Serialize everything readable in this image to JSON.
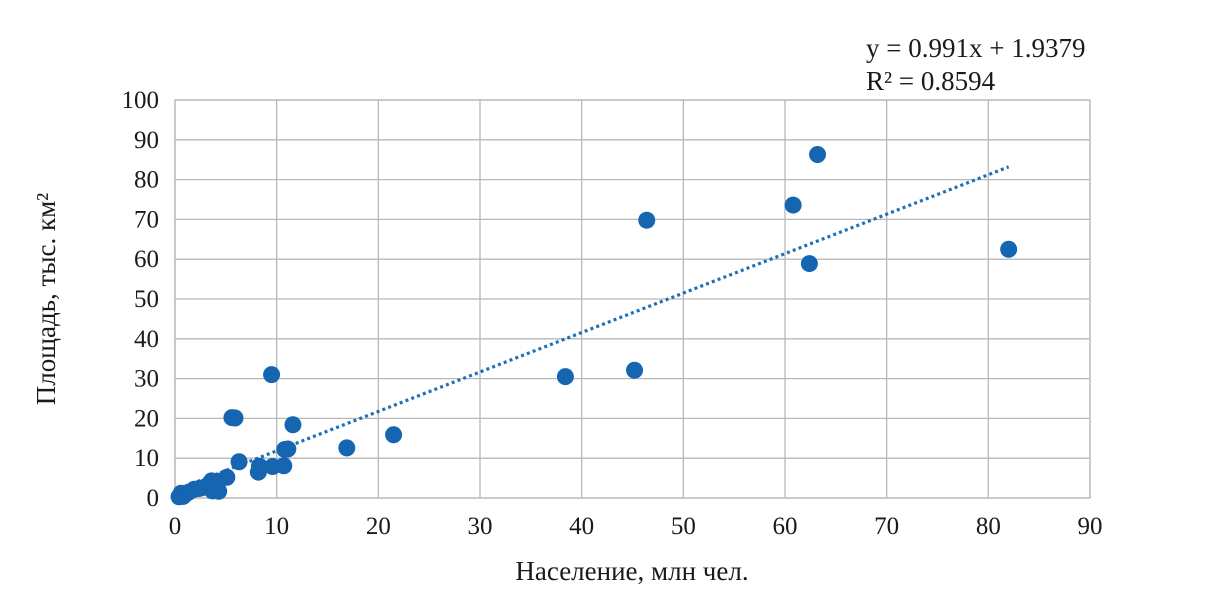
{
  "chart_data": {
    "type": "scatter",
    "title": "",
    "xlabel": "Население, млн чел.",
    "ylabel": "Площадь, тыс. км²",
    "xlim": [
      0,
      90
    ],
    "ylim": [
      0,
      100
    ],
    "xticks": [
      "0",
      "10",
      "20",
      "30",
      "40",
      "50",
      "60",
      "70",
      "80",
      "90"
    ],
    "yticks": [
      "0",
      "10",
      "20",
      "30",
      "40",
      "50",
      "60",
      "70",
      "80",
      "90",
      "100"
    ],
    "grid": true,
    "point_color": "#1565b0",
    "trend_color": "#1f6fb5",
    "trendline": {
      "type": "linear",
      "slope": 0.991,
      "intercept": 1.9379,
      "x_range": [
        0.5,
        82
      ],
      "equation": "y = 0.991x + 1.9379",
      "r2_label": "R² = 0.8594"
    },
    "series": [
      {
        "points": [
          [
            0.4,
            0.3
          ],
          [
            0.5,
            0.6
          ],
          [
            0.6,
            1.2
          ],
          [
            0.8,
            0.4
          ],
          [
            1.0,
            0.9
          ],
          [
            1.3,
            1.4
          ],
          [
            1.9,
            2.2
          ],
          [
            2.4,
            2.4
          ],
          [
            2.9,
            2.7
          ],
          [
            3.3,
            3.2
          ],
          [
            3.6,
            4.3
          ],
          [
            3.7,
            1.8
          ],
          [
            4.3,
            1.7
          ],
          [
            4.3,
            4.2
          ],
          [
            5.1,
            5.2
          ],
          [
            5.6,
            20.2
          ],
          [
            5.9,
            20.1
          ],
          [
            6.3,
            9.1
          ],
          [
            8.2,
            6.5
          ],
          [
            8.3,
            8.0
          ],
          [
            9.5,
            31.0
          ],
          [
            9.6,
            7.9
          ],
          [
            10.7,
            8.1
          ],
          [
            10.8,
            12.2
          ],
          [
            11.1,
            12.3
          ],
          [
            11.6,
            18.4
          ],
          [
            16.9,
            12.6
          ],
          [
            21.5,
            15.9
          ],
          [
            38.4,
            30.5
          ],
          [
            45.2,
            32.1
          ],
          [
            46.4,
            69.8
          ],
          [
            60.8,
            73.6
          ],
          [
            62.4,
            58.9
          ],
          [
            63.2,
            86.3
          ],
          [
            82.0,
            62.5
          ]
        ]
      }
    ]
  }
}
